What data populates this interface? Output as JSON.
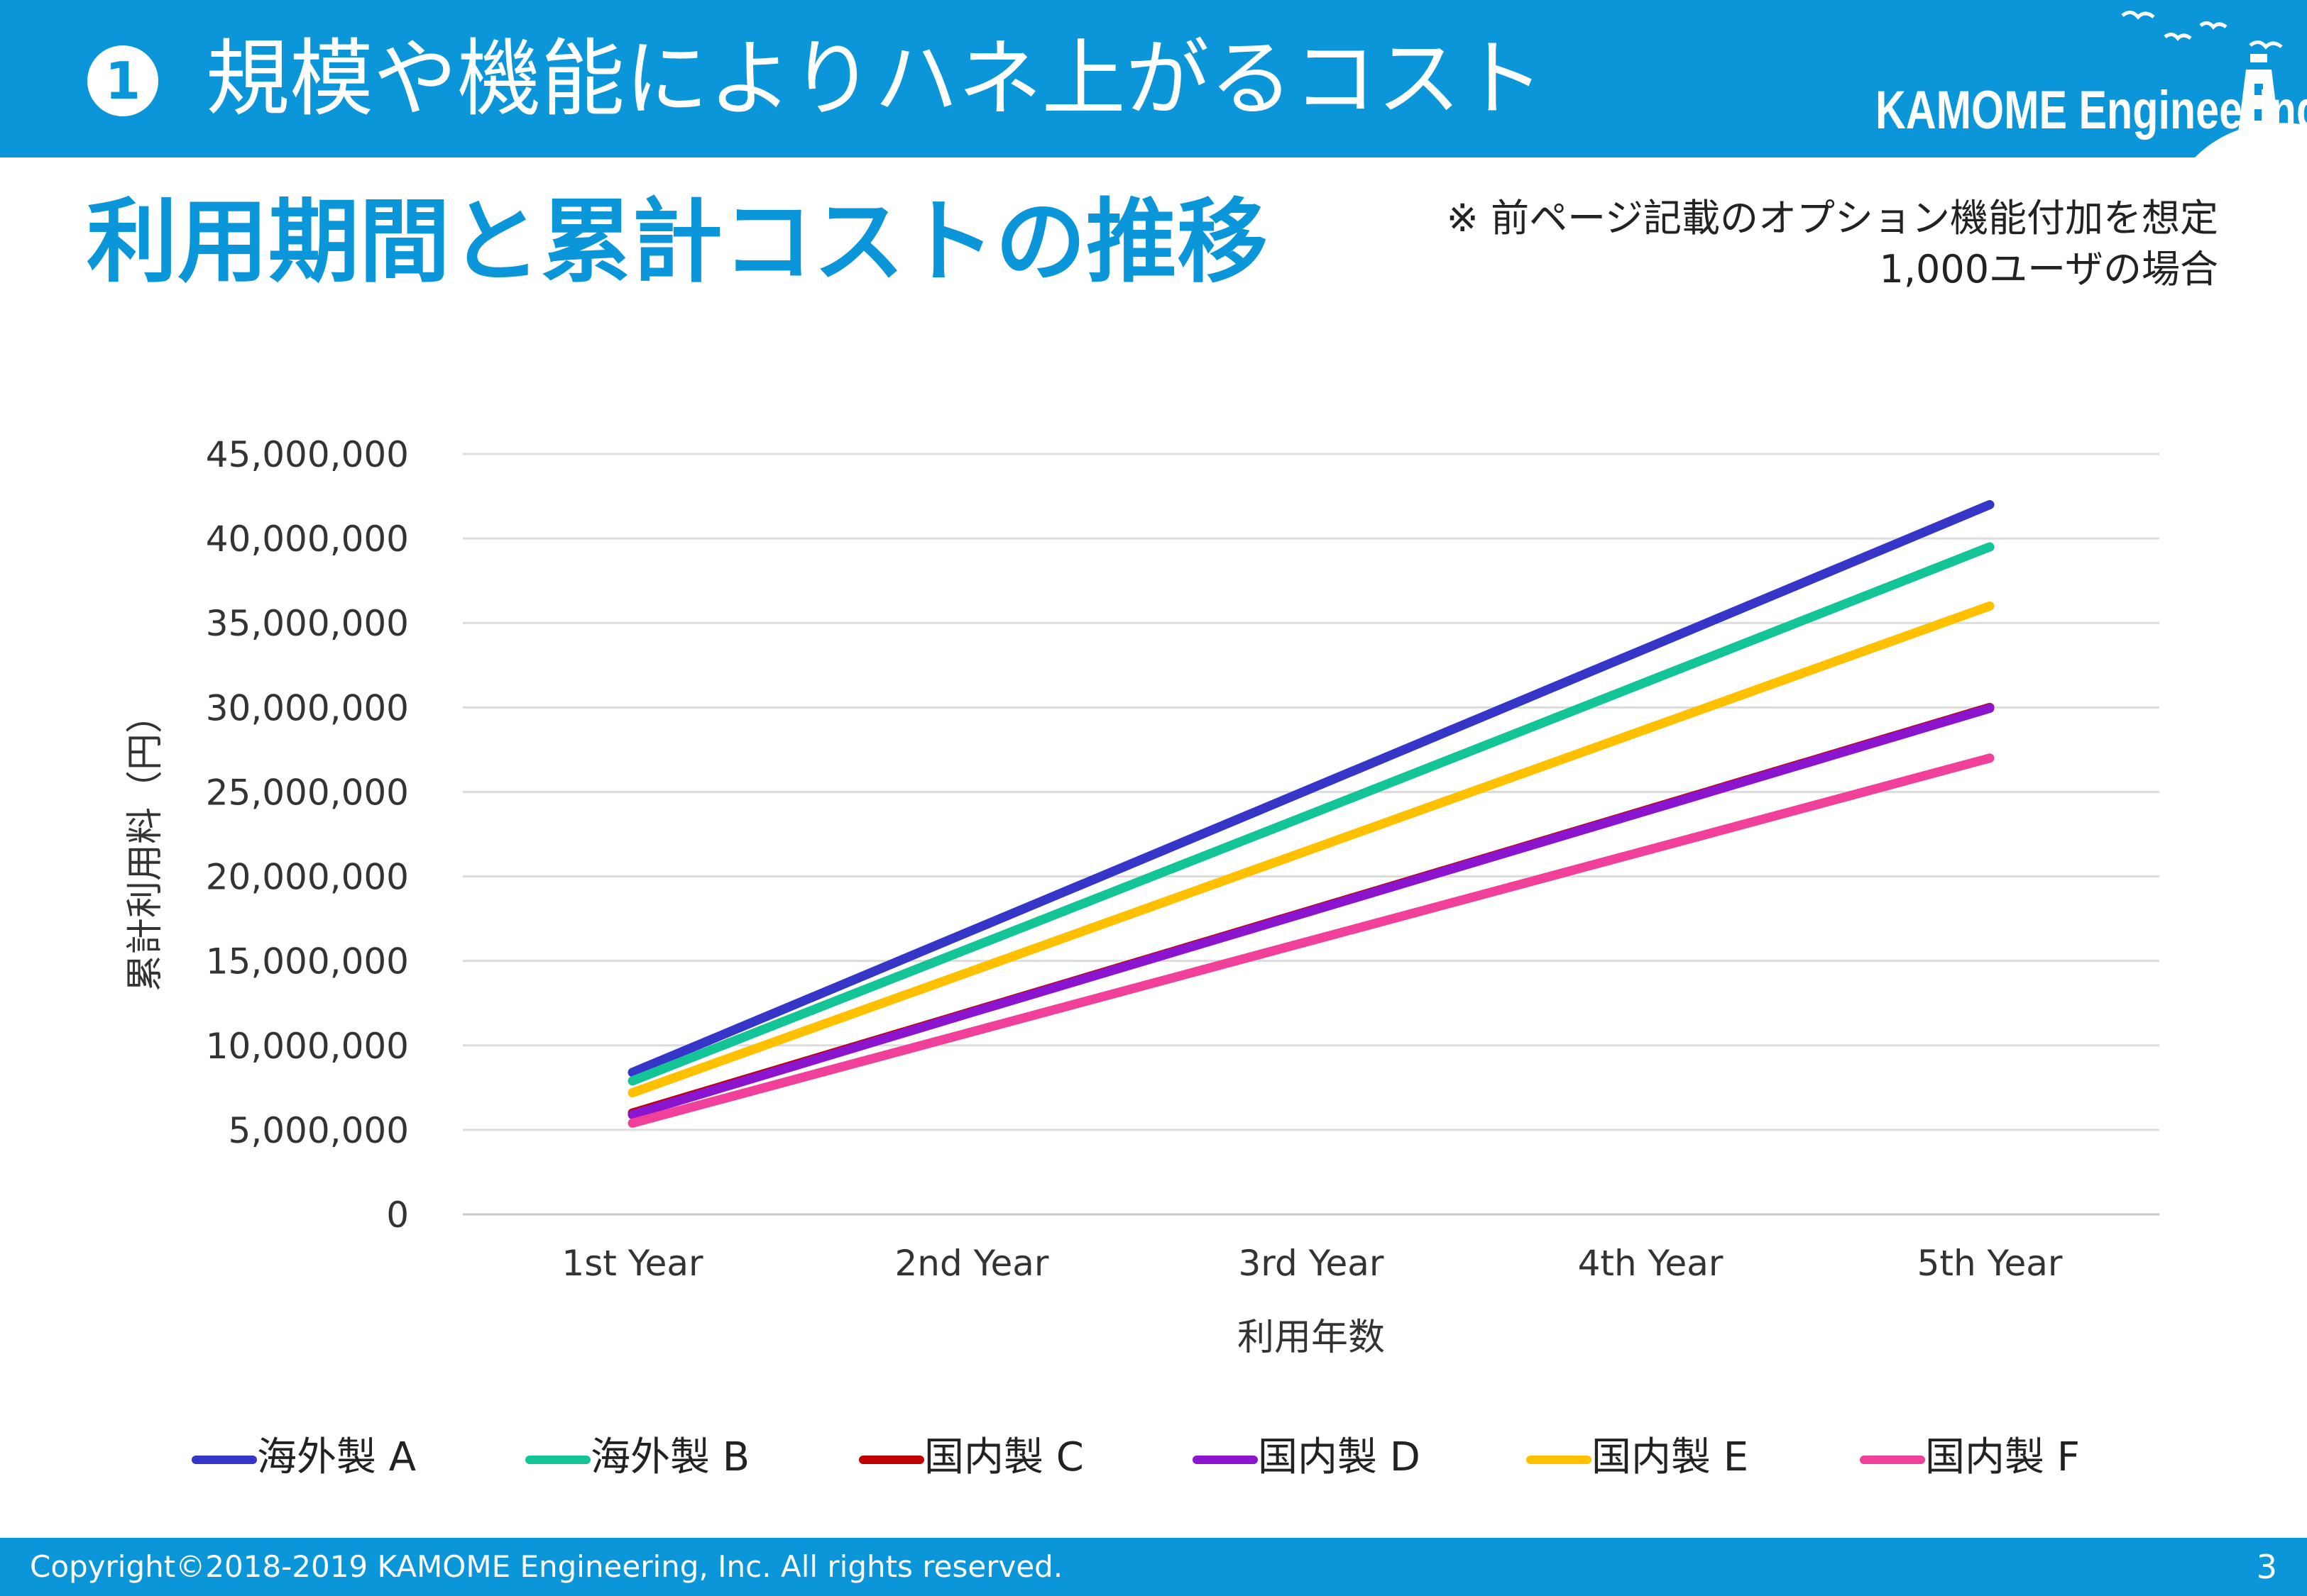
{
  "header": {
    "number": "1",
    "title": "規模や機能によりハネ上がるコスト",
    "logo_text": "KAMOME Engineering",
    "logo_icon": "seagulls-lighthouse-icon"
  },
  "subtitle": "利用期間と累計コストの推移",
  "note": {
    "line1": "※ 前ページ記載のオプション機能付加を想定",
    "line2": "1,000ユーザの場合"
  },
  "chart_data": {
    "type": "line",
    "categories": [
      "1st Year",
      "2nd Year",
      "3rd Year",
      "4th Year",
      "5th Year"
    ],
    "xlabel": "利用年数",
    "ylabel": "累計利用料（円）",
    "ylim": [
      0,
      45000000
    ],
    "yticks": [
      "0",
      "5,000,000",
      "10,000,000",
      "15,000,000",
      "20,000,000",
      "25,000,000",
      "30,000,000",
      "35,000,000",
      "40,000,000",
      "45,000,000"
    ],
    "grid": true,
    "legend_position": "bottom",
    "series": [
      {
        "name": "海外製 A",
        "color": "#3535c8",
        "values": [
          8400000,
          16800000,
          25200000,
          33600000,
          42000000
        ]
      },
      {
        "name": "海外製 B",
        "color": "#13c596",
        "values": [
          7900000,
          15800000,
          23700000,
          31600000,
          39500000
        ]
      },
      {
        "name": "国内製 C",
        "color": "#c00000",
        "values": [
          6000000,
          12000000,
          18000000,
          24000000,
          30000000
        ]
      },
      {
        "name": "国内製 D",
        "color": "#8b14cf",
        "values": [
          5900000,
          11950000,
          17950000,
          23950000,
          29950000
        ]
      },
      {
        "name": "国内製 E",
        "color": "#ffc000",
        "values": [
          7200000,
          14400000,
          21600000,
          28800000,
          36000000
        ]
      },
      {
        "name": "国内製 F",
        "color": "#f0409a",
        "values": [
          5400000,
          10800000,
          16200000,
          21600000,
          27000000
        ]
      }
    ]
  },
  "footer": {
    "copyright": "Copyright©2018-2019 KAMOME Engineering, Inc. All rights reserved.",
    "page": "3"
  }
}
